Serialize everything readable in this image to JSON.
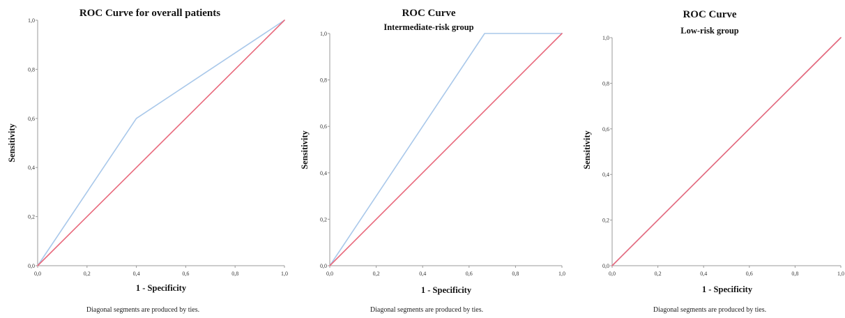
{
  "colors": {
    "roc": "#a9c8ea",
    "reference": "#e8697c",
    "axis": "#999999"
  },
  "chart_data": [
    {
      "type": "line",
      "title": "ROC Curve for overall patients",
      "subtitle": "",
      "xlabel": "1 - Specificity",
      "ylabel": "Sensitivity",
      "xlim": [
        0,
        1
      ],
      "ylim": [
        0,
        1
      ],
      "xticks": [
        "0,0",
        "0,2",
        "0,4",
        "0,6",
        "0,8",
        "1,0"
      ],
      "yticks": [
        "0,0",
        "0,2",
        "0,4",
        "0,6",
        "0,8",
        "1,0"
      ],
      "footnote": "Diagonal segments are produced by ties.",
      "grid": false,
      "series": [
        {
          "color": "roc",
          "x": [
            0,
            0.4,
            1.0
          ],
          "y": [
            0,
            0.6,
            1.0
          ]
        },
        {
          "color": "reference",
          "x": [
            0,
            1.0
          ],
          "y": [
            0,
            1.0
          ]
        }
      ]
    },
    {
      "type": "line",
      "title": "ROC Curve",
      "subtitle": "Intermediate-risk group",
      "xlabel": "1 - Specificity",
      "ylabel": "Sensitivity",
      "xlim": [
        0,
        1
      ],
      "ylim": [
        0,
        1
      ],
      "xticks": [
        "0,0",
        "0,2",
        "0,4",
        "0,6",
        "0,8",
        "1,0"
      ],
      "yticks": [
        "0,0",
        "0,2",
        "0,4",
        "0,6",
        "0,8",
        "1,0"
      ],
      "footnote": "Diagonal segments are produced by ties.",
      "grid": false,
      "series": [
        {
          "color": "roc",
          "x": [
            0,
            0.667,
            1.0
          ],
          "y": [
            0,
            1.0,
            1.0
          ]
        },
        {
          "color": "reference",
          "x": [
            0,
            1.0
          ],
          "y": [
            0,
            1.0
          ]
        }
      ]
    },
    {
      "type": "line",
      "title": "ROC Curve",
      "subtitle": "Low-risk group",
      "xlabel": "1 - Specificity",
      "ylabel": "Sensitivity",
      "xlim": [
        0,
        1
      ],
      "ylim": [
        0,
        1
      ],
      "xticks": [
        "0,0",
        "0,2",
        "0,4",
        "0,6",
        "0,8",
        "1,0"
      ],
      "yticks": [
        "0,0",
        "0,2",
        "0,4",
        "0,6",
        "0,8",
        "1,0"
      ],
      "footnote": "Diagonal segments are produced by ties.",
      "grid": false,
      "series": [
        {
          "color": "roc",
          "x": [
            0,
            1.0
          ],
          "y": [
            0,
            1.0
          ]
        },
        {
          "color": "reference",
          "x": [
            0,
            1.0
          ],
          "y": [
            0,
            1.0
          ]
        }
      ]
    }
  ]
}
